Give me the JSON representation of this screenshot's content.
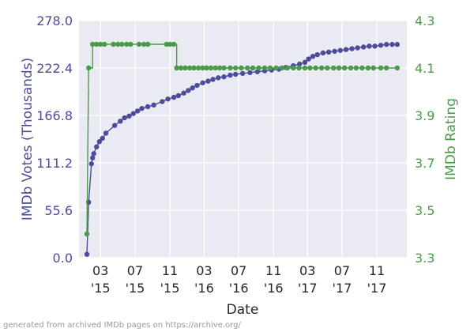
{
  "chart_data": {
    "type": "line",
    "xlabel": "Date",
    "x_ticks": [
      {
        "date": "2015-03-01",
        "label": [
          "03",
          "'15"
        ]
      },
      {
        "date": "2015-07-01",
        "label": [
          "07",
          "'15"
        ]
      },
      {
        "date": "2015-11-01",
        "label": [
          "11",
          "'15"
        ]
      },
      {
        "date": "2016-03-01",
        "label": [
          "03",
          "'16"
        ]
      },
      {
        "date": "2016-07-01",
        "label": [
          "07",
          "'16"
        ]
      },
      {
        "date": "2016-11-01",
        "label": [
          "11",
          "'16"
        ]
      },
      {
        "date": "2017-03-01",
        "label": [
          "03",
          "'17"
        ]
      },
      {
        "date": "2017-07-01",
        "label": [
          "07",
          "'17"
        ]
      },
      {
        "date": "2017-11-01",
        "label": [
          "11",
          "'17"
        ]
      }
    ],
    "xlim": [
      "2014-12-15",
      "2018-02-15"
    ],
    "grid": true,
    "y_left": {
      "label": "IMDb Votes (Thousands)",
      "ticks": [
        "0.0",
        "55.6",
        "111.2",
        "166.8",
        "222.4",
        "278.0"
      ],
      "lim": [
        0,
        278
      ],
      "color": "#4c4c9a"
    },
    "y_right": {
      "label": "IMDb Rating",
      "ticks": [
        "3.3",
        "3.5",
        "3.7",
        "3.9",
        "4.1",
        "4.3"
      ],
      "lim": [
        3.3,
        4.3
      ],
      "color": "#4a9a4a"
    },
    "series": [
      {
        "axis": "left",
        "color": "#4c4c9a",
        "points": [
          [
            "2015-01-12",
            4
          ],
          [
            "2015-01-18",
            65
          ],
          [
            "2015-01-28",
            110
          ],
          [
            "2015-02-01",
            117
          ],
          [
            "2015-02-05",
            122
          ],
          [
            "2015-02-15",
            130
          ],
          [
            "2015-02-25",
            136
          ],
          [
            "2015-03-08",
            140
          ],
          [
            "2015-03-20",
            146
          ],
          [
            "2015-04-20",
            155
          ],
          [
            "2015-05-10",
            160
          ],
          [
            "2015-05-25",
            164
          ],
          [
            "2015-06-10",
            166
          ],
          [
            "2015-06-25",
            169
          ],
          [
            "2015-07-10",
            172
          ],
          [
            "2015-07-25",
            175
          ],
          [
            "2015-08-15",
            177
          ],
          [
            "2015-09-05",
            179
          ],
          [
            "2015-10-05",
            183
          ],
          [
            "2015-10-25",
            186
          ],
          [
            "2015-11-15",
            188
          ],
          [
            "2015-12-01",
            190
          ],
          [
            "2015-12-20",
            193
          ],
          [
            "2016-01-05",
            196
          ],
          [
            "2016-01-20",
            199
          ],
          [
            "2016-02-05",
            202
          ],
          [
            "2016-02-25",
            205
          ],
          [
            "2016-03-15",
            207
          ],
          [
            "2016-04-01",
            209
          ],
          [
            "2016-04-20",
            211
          ],
          [
            "2016-05-10",
            212
          ],
          [
            "2016-06-01",
            214
          ],
          [
            "2016-06-20",
            215
          ],
          [
            "2016-07-15",
            216
          ],
          [
            "2016-08-10",
            217
          ],
          [
            "2016-09-05",
            218
          ],
          [
            "2016-10-01",
            219
          ],
          [
            "2016-10-25",
            220
          ],
          [
            "2016-11-20",
            221
          ],
          [
            "2016-12-15",
            223
          ],
          [
            "2017-01-10",
            225
          ],
          [
            "2017-02-01",
            227
          ],
          [
            "2017-02-20",
            229
          ],
          [
            "2017-03-05",
            233
          ],
          [
            "2017-03-20",
            236
          ],
          [
            "2017-04-05",
            238
          ],
          [
            "2017-04-25",
            240
          ],
          [
            "2017-05-15",
            241
          ],
          [
            "2017-06-05",
            242
          ],
          [
            "2017-06-25",
            243
          ],
          [
            "2017-07-15",
            244
          ],
          [
            "2017-08-05",
            245
          ],
          [
            "2017-08-25",
            246
          ],
          [
            "2017-09-15",
            247
          ],
          [
            "2017-10-05",
            248
          ],
          [
            "2017-10-25",
            248
          ],
          [
            "2017-11-15",
            249
          ],
          [
            "2017-12-05",
            250
          ],
          [
            "2017-12-25",
            250
          ],
          [
            "2018-01-12",
            250
          ]
        ]
      },
      {
        "axis": "right",
        "color": "#4a9a4a",
        "points": [
          [
            "2015-01-12",
            3.4
          ],
          [
            "2015-01-18",
            4.1
          ],
          [
            "2015-02-01",
            4.2
          ],
          [
            "2015-02-15",
            4.2
          ],
          [
            "2015-03-01",
            4.2
          ],
          [
            "2015-03-15",
            4.2
          ],
          [
            "2015-04-15",
            4.2
          ],
          [
            "2015-05-01",
            4.2
          ],
          [
            "2015-05-15",
            4.2
          ],
          [
            "2015-06-01",
            4.2
          ],
          [
            "2015-06-15",
            4.2
          ],
          [
            "2015-07-15",
            4.2
          ],
          [
            "2015-08-01",
            4.2
          ],
          [
            "2015-08-15",
            4.2
          ],
          [
            "2015-10-20",
            4.2
          ],
          [
            "2015-11-01",
            4.2
          ],
          [
            "2015-11-15",
            4.2
          ],
          [
            "2015-11-25",
            4.1
          ],
          [
            "2015-12-10",
            4.1
          ],
          [
            "2015-12-25",
            4.1
          ],
          [
            "2016-01-10",
            4.1
          ],
          [
            "2016-01-25",
            4.1
          ],
          [
            "2016-02-10",
            4.1
          ],
          [
            "2016-02-25",
            4.1
          ],
          [
            "2016-03-10",
            4.1
          ],
          [
            "2016-03-25",
            4.1
          ],
          [
            "2016-04-10",
            4.1
          ],
          [
            "2016-04-25",
            4.1
          ],
          [
            "2016-05-10",
            4.1
          ],
          [
            "2016-06-01",
            4.1
          ],
          [
            "2016-06-20",
            4.1
          ],
          [
            "2016-07-10",
            4.1
          ],
          [
            "2016-08-01",
            4.1
          ],
          [
            "2016-08-20",
            4.1
          ],
          [
            "2016-09-10",
            4.1
          ],
          [
            "2016-10-01",
            4.1
          ],
          [
            "2016-10-20",
            4.1
          ],
          [
            "2016-11-10",
            4.1
          ],
          [
            "2016-12-01",
            4.1
          ],
          [
            "2016-12-20",
            4.1
          ],
          [
            "2017-01-10",
            4.1
          ],
          [
            "2017-01-30",
            4.1
          ],
          [
            "2017-02-20",
            4.1
          ],
          [
            "2017-03-10",
            4.1
          ],
          [
            "2017-03-30",
            4.1
          ],
          [
            "2017-04-20",
            4.1
          ],
          [
            "2017-05-10",
            4.1
          ],
          [
            "2017-06-01",
            4.1
          ],
          [
            "2017-06-20",
            4.1
          ],
          [
            "2017-07-10",
            4.1
          ],
          [
            "2017-08-01",
            4.1
          ],
          [
            "2017-08-20",
            4.1
          ],
          [
            "2017-09-10",
            4.1
          ],
          [
            "2017-10-01",
            4.1
          ],
          [
            "2017-10-20",
            4.1
          ],
          [
            "2017-11-15",
            4.1
          ],
          [
            "2017-12-05",
            4.1
          ],
          [
            "2018-01-12",
            4.1
          ]
        ]
      }
    ]
  },
  "footnote": "generated from archived IMDb pages on https://archive.org/"
}
